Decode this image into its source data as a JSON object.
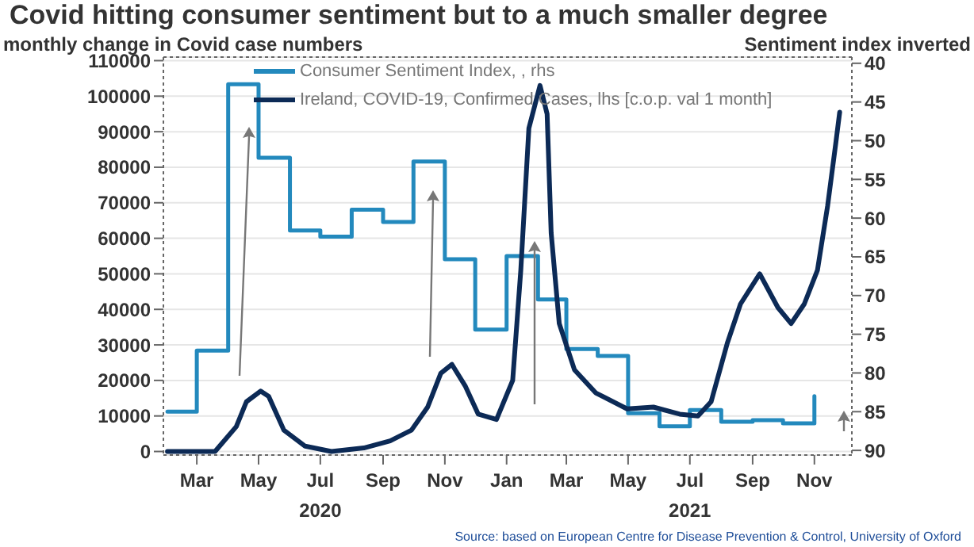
{
  "chart_data": {
    "type": "line",
    "title": "Covid hitting consumer sentiment but to a much smaller degree",
    "ylabel": "monthly change in Covid case numbers",
    "y2label": "Sentiment index inverted",
    "xlim": [
      "2020-01-28",
      "2021-12-08"
    ],
    "xticks": [
      {
        "value": "2020-03-01",
        "label": "Mar"
      },
      {
        "value": "2020-05-01",
        "label": "May"
      },
      {
        "value": "2020-07-01",
        "label": "Jul\n2020"
      },
      {
        "value": "2020-09-01",
        "label": "Sep"
      },
      {
        "value": "2020-11-01",
        "label": "Nov"
      },
      {
        "value": "2021-01-01",
        "label": "Jan"
      },
      {
        "value": "2021-03-01",
        "label": "Mar"
      },
      {
        "value": "2021-05-01",
        "label": "May"
      },
      {
        "value": "2021-07-01",
        "label": "Jul\n2021"
      },
      {
        "value": "2021-09-01",
        "label": "Sep"
      },
      {
        "value": "2021-11-01",
        "label": "Nov"
      }
    ],
    "ylim": [
      -1000,
      111000
    ],
    "yticks": [
      0,
      10000,
      20000,
      30000,
      40000,
      50000,
      60000,
      70000,
      80000,
      90000,
      100000,
      110000
    ],
    "y2lim": [
      90.6,
      39.2
    ],
    "y2ticks": [
      40,
      45,
      50,
      55,
      60,
      65,
      70,
      75,
      80,
      85,
      90
    ],
    "grid": "y",
    "legend": "top",
    "marker": "none",
    "series": [
      {
        "name": "Consumer Sentiment Index, , rhs",
        "type": "step",
        "axis": "y2",
        "color": "#2389bd",
        "x": [
          "2020-02",
          "2020-03",
          "2020-04",
          "2020-05",
          "2020-06",
          "2020-07",
          "2020-08",
          "2020-09",
          "2020-10",
          "2020-11",
          "2020-12",
          "2021-01",
          "2021-02",
          "2021-03",
          "2021-04",
          "2021-05",
          "2021-06",
          "2021-07",
          "2021-08",
          "2021-09",
          "2021-10",
          "2021-11"
        ],
        "values": [
          85.0,
          77.1,
          42.7,
          52.2,
          61.6,
          62.4,
          58.9,
          60.5,
          52.7,
          65.3,
          74.4,
          64.9,
          70.5,
          76.9,
          77.8,
          85.2,
          86.9,
          84.8,
          86.3,
          86.1,
          86.5,
          83.0
        ]
      },
      {
        "name": "Ireland, COVID-19, Confirmed Cases, lhs [c.o.p. val 1 month]",
        "type": "line",
        "color": "#0c2a56",
        "x": [
          "2020-02-01",
          "2020-03-19",
          "2020-04-09",
          "2020-04-19",
          "2020-05-03",
          "2020-05-11",
          "2020-05-26",
          "2020-06-16",
          "2020-07-12",
          "2020-08-13",
          "2020-09-08",
          "2020-09-29",
          "2020-10-15",
          "2020-10-28",
          "2020-11-08",
          "2020-11-21",
          "2020-12-04",
          "2020-12-22",
          "2021-01-07",
          "2021-01-15",
          "2021-01-23",
          "2021-02-03",
          "2021-02-10",
          "2021-02-14",
          "2021-02-22",
          "2021-03-09",
          "2021-03-30",
          "2021-04-30",
          "2021-05-26",
          "2021-06-21",
          "2021-07-09",
          "2021-07-22",
          "2021-08-07",
          "2021-08-20",
          "2021-09-08",
          "2021-09-26",
          "2021-10-09",
          "2021-10-22",
          "2021-11-04",
          "2021-11-14",
          "2021-11-22",
          "2021-11-26"
        ],
        "values": [
          0,
          0,
          7000,
          14000,
          17000,
          15500,
          6000,
          1500,
          0,
          1000,
          3000,
          6000,
          12500,
          22000,
          24500,
          18500,
          10500,
          9000,
          20000,
          51000,
          91000,
          103000,
          95000,
          61500,
          36000,
          23000,
          16500,
          12000,
          12500,
          10500,
          10000,
          14000,
          30500,
          41500,
          50000,
          40500,
          36000,
          41500,
          51000,
          69000,
          86500,
          95500
        ]
      }
    ],
    "annotations": [
      "Source: based on European Centre for Disease Prevention & Control, University of Oxford"
    ]
  }
}
